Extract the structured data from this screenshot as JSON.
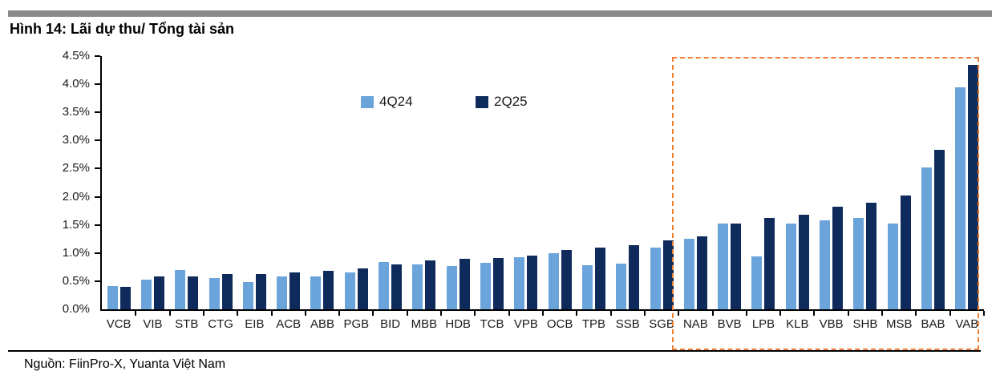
{
  "header": {
    "title": "Hình 14: Lãi dự thu/ Tổng tài sản"
  },
  "footer": {
    "source": "Nguồn: FiinPro-X, Yuanta Việt Nam"
  },
  "colors": {
    "series_light": "#6BA3DB",
    "series_dark": "#0E2B5C",
    "highlight": "#ED7D31",
    "top_bar": "#8a8a8a"
  },
  "chart_data": {
    "type": "bar",
    "title": "Hình 14: Lãi dự thu/ Tổng tài sản",
    "xlabel": "",
    "ylabel": "",
    "ylim": [
      0,
      4.5
    ],
    "ytick_step": 0.5,
    "ytick_labels": [
      "0.0%",
      "0.5%",
      "1.0%",
      "1.5%",
      "2.0%",
      "2.5%",
      "3.0%",
      "3.5%",
      "4.0%",
      "4.5%"
    ],
    "grid": false,
    "legend_position": "inside-top-center",
    "categories": [
      "VCB",
      "VIB",
      "STB",
      "CTG",
      "EIB",
      "ACB",
      "ABB",
      "PGB",
      "BID",
      "MBB",
      "HDB",
      "TCB",
      "VPB",
      "OCB",
      "TPB",
      "SSB",
      "SGB",
      "NAB",
      "BVB",
      "LPB",
      "KLB",
      "VBB",
      "SHB",
      "MSB",
      "BAB",
      "VAB"
    ],
    "series": [
      {
        "name": "4Q24",
        "color": "#6BA3DB",
        "values": [
          0.42,
          0.53,
          0.7,
          0.56,
          0.49,
          0.58,
          0.58,
          0.65,
          0.84,
          0.8,
          0.77,
          0.83,
          0.92,
          1.0,
          0.79,
          0.81,
          1.09,
          1.25,
          1.53,
          0.94,
          1.52,
          1.58,
          1.63,
          1.53,
          2.52,
          3.95
        ]
      },
      {
        "name": "2Q25",
        "color": "#0E2B5C",
        "values": [
          0.4,
          0.58,
          0.58,
          0.62,
          0.63,
          0.65,
          0.68,
          0.73,
          0.8,
          0.87,
          0.9,
          0.91,
          0.95,
          1.06,
          1.1,
          1.14,
          1.22,
          1.3,
          1.52,
          1.63,
          1.68,
          1.82,
          1.9,
          2.02,
          2.83,
          4.35
        ]
      }
    ],
    "highlight_box": {
      "from_category": "NAB",
      "to_category": "VAB",
      "style": "dashed",
      "color": "#ED7D31"
    }
  }
}
